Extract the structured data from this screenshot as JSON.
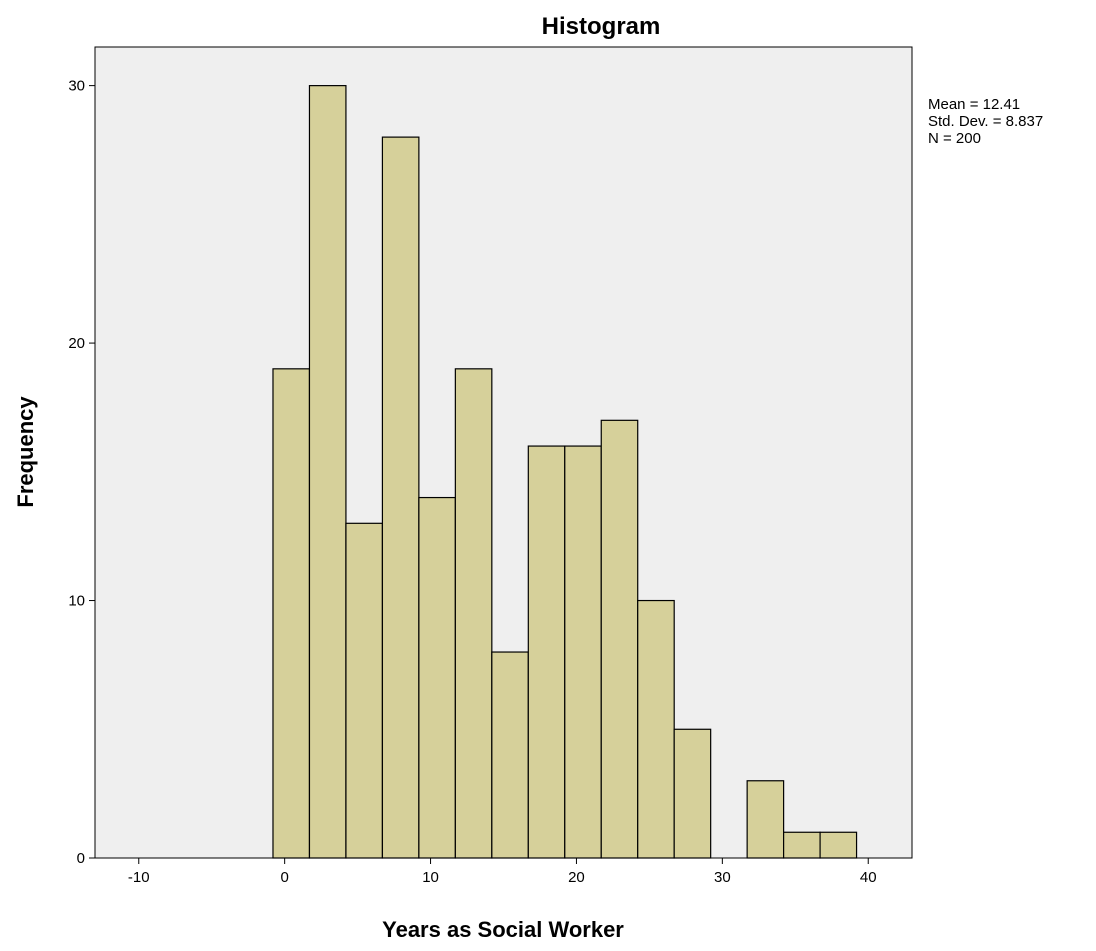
{
  "chart_data": {
    "type": "bar",
    "title": "Histogram",
    "xlabel": "Years as Social Worker",
    "ylabel": "Frequency",
    "xlim": [
      -13,
      43
    ],
    "ylim": [
      0,
      31.5
    ],
    "xticks": [
      -10,
      0,
      10,
      20,
      30,
      40
    ],
    "yticks": [
      0,
      10,
      20,
      30
    ],
    "bin_width": 2.5,
    "bins": [
      {
        "x0": -0.8,
        "value": 19
      },
      {
        "x0": 1.7,
        "value": 30
      },
      {
        "x0": 4.2,
        "value": 13
      },
      {
        "x0": 6.7,
        "value": 28
      },
      {
        "x0": 9.2,
        "value": 14
      },
      {
        "x0": 11.7,
        "value": 19
      },
      {
        "x0": 14.2,
        "value": 8
      },
      {
        "x0": 16.7,
        "value": 16
      },
      {
        "x0": 19.2,
        "value": 16
      },
      {
        "x0": 21.7,
        "value": 17
      },
      {
        "x0": 24.2,
        "value": 10
      },
      {
        "x0": 26.7,
        "value": 5
      },
      {
        "x0": 29.2,
        "value": 0
      },
      {
        "x0": 31.7,
        "value": 3
      },
      {
        "x0": 34.2,
        "value": 1
      },
      {
        "x0": 36.7,
        "value": 1
      }
    ],
    "stats": [
      "Mean = 12.41",
      "Std. Dev. = 8.837",
      "N = 200"
    ],
    "grid": false,
    "colors": {
      "bar_fill": "#d6d09a",
      "bar_stroke": "#000000",
      "plot_background": "#efefef"
    }
  }
}
